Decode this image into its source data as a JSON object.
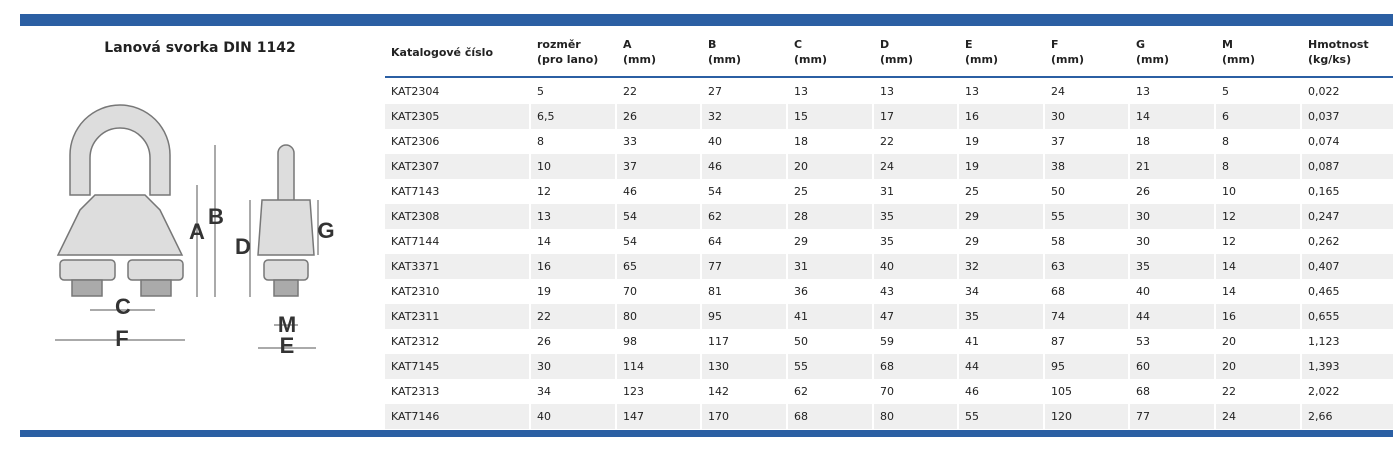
{
  "title": "Lanová svorka DIN 1142",
  "diagram": {
    "labels": [
      "A",
      "B",
      "C",
      "D",
      "E",
      "F",
      "G",
      "M"
    ]
  },
  "table": {
    "header": [
      [
        "Katalogové číslo"
      ],
      [
        "rozměr",
        "(pro lano)"
      ],
      [
        "A",
        "(mm)"
      ],
      [
        "B",
        "(mm)"
      ],
      [
        "C",
        "(mm)"
      ],
      [
        "D",
        "(mm)"
      ],
      [
        "E",
        "(mm)"
      ],
      [
        "F",
        "(mm)"
      ],
      [
        "G",
        "(mm)"
      ],
      [
        "M",
        "(mm)"
      ],
      [
        "Hmotnost",
        "(kg/ks)"
      ]
    ],
    "rows": [
      [
        "KAT2304",
        "5",
        "22",
        "27",
        "13",
        "13",
        "13",
        "24",
        "13",
        "5",
        "0,022"
      ],
      [
        "KAT2305",
        "6,5",
        "26",
        "32",
        "15",
        "17",
        "16",
        "30",
        "14",
        "6",
        "0,037"
      ],
      [
        "KAT2306",
        "8",
        "33",
        "40",
        "18",
        "22",
        "19",
        "37",
        "18",
        "8",
        "0,074"
      ],
      [
        "KAT2307",
        "10",
        "37",
        "46",
        "20",
        "24",
        "19",
        "38",
        "21",
        "8",
        "0,087"
      ],
      [
        "KAT7143",
        "12",
        "46",
        "54",
        "25",
        "31",
        "25",
        "50",
        "26",
        "10",
        "0,165"
      ],
      [
        "KAT2308",
        "13",
        "54",
        "62",
        "28",
        "35",
        "29",
        "55",
        "30",
        "12",
        "0,247"
      ],
      [
        "KAT7144",
        "14",
        "54",
        "64",
        "29",
        "35",
        "29",
        "58",
        "30",
        "12",
        "0,262"
      ],
      [
        "KAT3371",
        "16",
        "65",
        "77",
        "31",
        "40",
        "32",
        "63",
        "35",
        "14",
        "0,407"
      ],
      [
        "KAT2310",
        "19",
        "70",
        "81",
        "36",
        "43",
        "34",
        "68",
        "40",
        "14",
        "0,465"
      ],
      [
        "KAT2311",
        "22",
        "80",
        "95",
        "41",
        "47",
        "35",
        "74",
        "44",
        "16",
        "0,655"
      ],
      [
        "KAT2312",
        "26",
        "98",
        "117",
        "50",
        "59",
        "41",
        "87",
        "53",
        "20",
        "1,123"
      ],
      [
        "KAT7145",
        "30",
        "114",
        "130",
        "55",
        "68",
        "44",
        "95",
        "60",
        "20",
        "1,393"
      ],
      [
        "KAT2313",
        "34",
        "123",
        "142",
        "62",
        "70",
        "46",
        "105",
        "68",
        "22",
        "2,022"
      ],
      [
        "KAT7146",
        "40",
        "147",
        "170",
        "68",
        "80",
        "55",
        "120",
        "77",
        "24",
        "2,66"
      ]
    ]
  }
}
